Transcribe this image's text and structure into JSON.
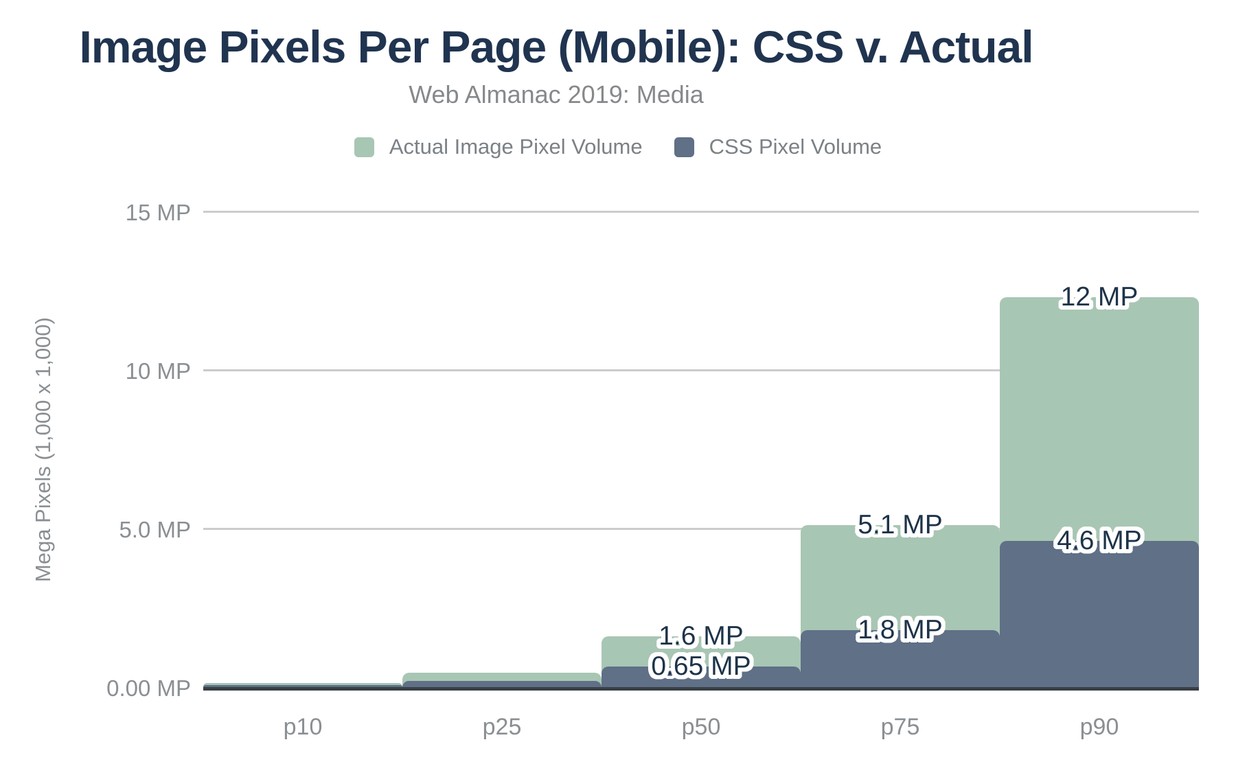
{
  "title": "Image Pixels Per Page (Mobile): CSS v. Actual",
  "subtitle": "Web Almanac 2019: Media",
  "legend": [
    {
      "label": "Actual Image Pixel Volume",
      "color": "#a8c6b4"
    },
    {
      "label": "CSS Pixel Volume",
      "color": "#5f7087"
    }
  ],
  "y_axis": {
    "title": "Mega Pixels (1,000 x 1,000)",
    "ticks": [
      {
        "value": 15,
        "label": "15 MP"
      },
      {
        "value": 10,
        "label": "10 MP"
      },
      {
        "value": 5,
        "label": "5.0 MP"
      },
      {
        "value": 0,
        "label": "0.00 MP"
      }
    ]
  },
  "x_axis": {
    "categories": [
      "p10",
      "p25",
      "p50",
      "p75",
      "p90"
    ]
  },
  "chart_data": {
    "type": "bar",
    "style": "stepped-full-width-overlapping",
    "title": "Image Pixels Per Page (Mobile): CSS v. Actual",
    "subtitle": "Web Almanac 2019: Media",
    "categories": [
      "p10",
      "p25",
      "p50",
      "p75",
      "p90"
    ],
    "series": [
      {
        "name": "Actual Image Pixel Volume",
        "color": "#a8c6b4",
        "values": [
          0.12,
          0.45,
          1.6,
          5.1,
          12.3
        ],
        "labels": [
          "",
          "",
          "1.6 MP",
          "5.1 MP",
          "12 MP"
        ]
      },
      {
        "name": "CSS Pixel Volume",
        "color": "#5f7087",
        "values": [
          0.07,
          0.2,
          0.65,
          1.8,
          4.6
        ],
        "labels": [
          "",
          "",
          "0.65 MP",
          "1.8 MP",
          "4.6 MP"
        ]
      }
    ],
    "xlabel": "",
    "ylabel": "Mega Pixels (1,000 x 1,000)",
    "ylim": [
      0,
      15
    ],
    "grid": true,
    "legend_position": "top"
  },
  "colors": {
    "actual_series": "#a8c6b4",
    "css_series": "#5f7087",
    "title_text": "#203450",
    "subtitle_text": "#86898c",
    "legend_text": "#7b8186",
    "tick_text": "#8a8f93",
    "data_label_text": "#1d3349",
    "data_label_outline": "#ffffff",
    "gridline": "#cccccc",
    "axis_line": "#383f45",
    "background": "#ffffff"
  }
}
